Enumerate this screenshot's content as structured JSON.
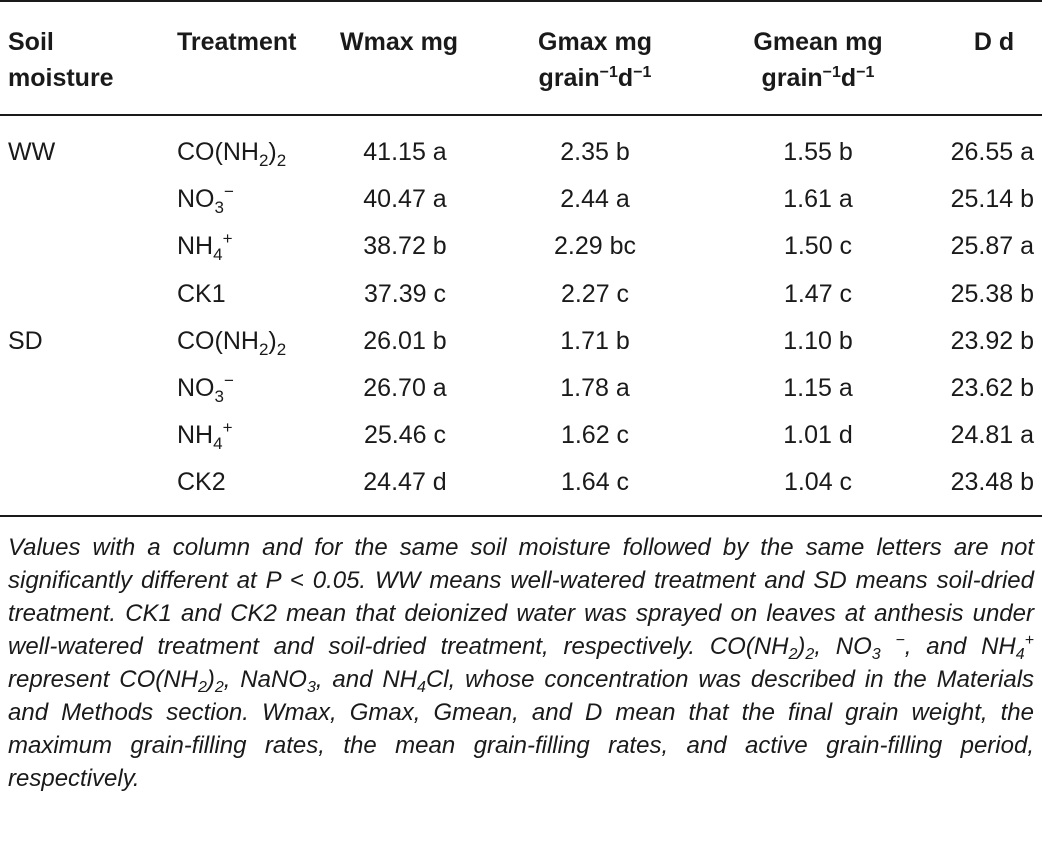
{
  "header": {
    "soil_l1": "Soil",
    "soil_l2": "moisture",
    "treatment": "Treatment",
    "wmax": "Wmax mg",
    "gmax_l1": "Gmax mg",
    "gmax_l2a": "grain",
    "gmax_sup1": "−1",
    "gmax_l2b": "d",
    "gmax_sup2": "−1",
    "gmean_l1": "Gmean mg",
    "gmean_l2a": "grain",
    "gmean_sup1": "−1",
    "gmean_l2b": "d",
    "gmean_sup2": "−1",
    "d": "D d"
  },
  "rows": [
    {
      "soil": "WW",
      "t_base": "CO(NH",
      "t_sub": "2",
      "t_mid": ")",
      "t_sub2": "2",
      "t_sup": "",
      "wmax": "41.15 a",
      "gmax": "2.35 b",
      "gmean": "1.55 b",
      "d": "26.55 a"
    },
    {
      "soil": "",
      "t_base": "NO",
      "t_sub": "3",
      "t_mid": "",
      "t_sub2": "",
      "t_sup": "−",
      "wmax": "40.47 a",
      "gmax": "2.44 a",
      "gmean": "1.61 a",
      "d": "25.14 b"
    },
    {
      "soil": "",
      "t_base": "NH",
      "t_sub": "4",
      "t_mid": "",
      "t_sub2": "",
      "t_sup": "+",
      "wmax": "38.72 b",
      "gmax": "2.29 bc",
      "gmean": "1.50 c",
      "d": "25.87 a"
    },
    {
      "soil": "",
      "t_base": "CK1",
      "t_sub": "",
      "t_mid": "",
      "t_sub2": "",
      "t_sup": "",
      "wmax": "37.39 c",
      "gmax": "2.27 c",
      "gmean": "1.47 c",
      "d": "25.38 b"
    },
    {
      "soil": "SD",
      "t_base": "CO(NH",
      "t_sub": "2",
      "t_mid": ")",
      "t_sub2": "2",
      "t_sup": "",
      "wmax": "26.01 b",
      "gmax": "1.71 b",
      "gmean": "1.10 b",
      "d": "23.92 b"
    },
    {
      "soil": "",
      "t_base": "NO",
      "t_sub": "3",
      "t_mid": "",
      "t_sub2": "",
      "t_sup": "−",
      "wmax": "26.70 a",
      "gmax": "1.78 a",
      "gmean": "1.15 a",
      "d": "23.62 b"
    },
    {
      "soil": "",
      "t_base": "NH",
      "t_sub": "4",
      "t_mid": "",
      "t_sub2": "",
      "t_sup": "+",
      "wmax": "25.46 c",
      "gmax": "1.62 c",
      "gmean": "1.01 d",
      "d": "24.81 a"
    },
    {
      "soil": "",
      "t_base": "CK2",
      "t_sub": "",
      "t_mid": "",
      "t_sub2": "",
      "t_sup": "",
      "wmax": "24.47 d",
      "gmax": "1.64 c",
      "gmean": "1.04 c",
      "d": "23.48 b"
    }
  ],
  "footnote": {
    "p1": "Values with a column and for the same soil moisture followed by the same letters are not significantly different at P < 0.05. WW means well-watered treatment and SD means soil-dried treatment. CK1 and CK2 mean that deionized water was sprayed on leaves at anthesis under well-watered treatment and soil-dried treatment, respectively. CO(NH",
    "s1": "2",
    "p2": ")",
    "s2": "2",
    "p3": ", NO",
    "s3": "3",
    "p4": " ",
    "u1": "−",
    "p5": ", and NH",
    "s4": "4",
    "u2": "+",
    "p6": " represent CO(NH",
    "s5": "2",
    "p7": ")",
    "s6": "2",
    "p8": ", NaNO",
    "s7": "3",
    "p9": ", and NH",
    "s8": "4",
    "p10": "Cl, whose concentration was described in the Materials and Methods section. Wmax, Gmax, Gmean, and D mean that the final grain weight, the maximum grain-filling rates, the mean grain-filling rates, and active grain-filling period, respectively."
  }
}
